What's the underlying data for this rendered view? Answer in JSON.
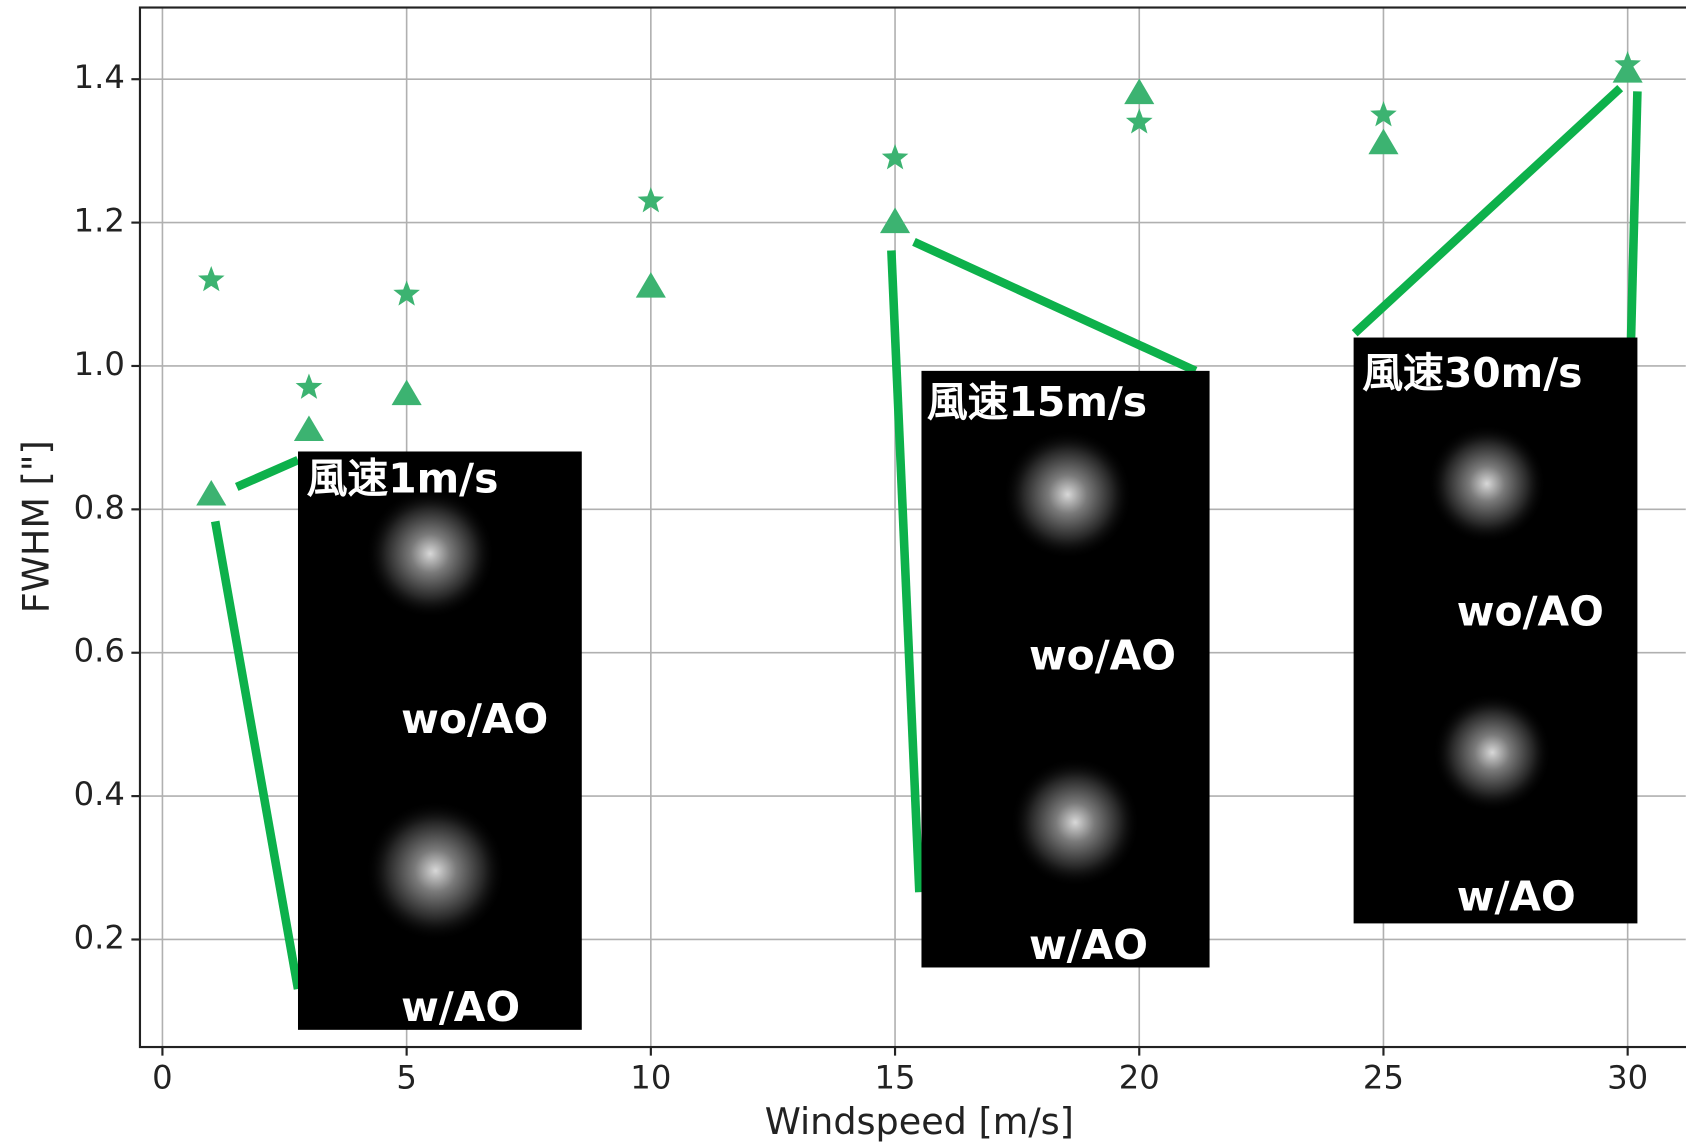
{
  "chart_data": {
    "type": "scatter",
    "x_label": "Windspeed [m/s]",
    "y_label": "FWHM [\"]",
    "x": [
      1,
      3,
      5,
      10,
      15,
      20,
      25,
      30
    ],
    "series": [
      {
        "color": "#3cb371",
        "marker": "star",
        "values": [
          1.12,
          0.97,
          1.1,
          1.23,
          1.29,
          1.34,
          1.35,
          1.42
        ]
      },
      {
        "color": "#3cb371",
        "marker": "triangle",
        "values": [
          0.82,
          0.91,
          0.96,
          1.11,
          1.2,
          1.38,
          1.31,
          1.41
        ]
      }
    ],
    "xlim": [
      -0.46,
      31.19
    ],
    "ylim": [
      0.05,
      1.5
    ],
    "xticks": [
      0,
      5,
      10,
      15,
      20,
      25,
      30
    ],
    "yticks": [
      0.2,
      0.4,
      0.6,
      0.8,
      {
        "value": 1,
        "label": "1.0"
      },
      1.2,
      1.4
    ],
    "grid": true,
    "insets": [
      {
        "title": "風速1m/s",
        "top_label": "wo/AO",
        "bottom_label": "w/AO"
      },
      {
        "title": "風速15m/s",
        "top_label": "wo/AO",
        "bottom_label": "w/AO"
      },
      {
        "title": "風速30m/s",
        "top_label": "wo/AO",
        "bottom_label": "w/AO"
      }
    ]
  }
}
